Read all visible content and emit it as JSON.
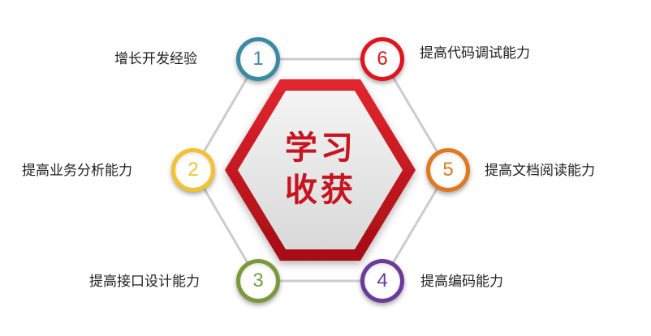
{
  "center": {
    "line1": "学习",
    "line2": "收获"
  },
  "nodes": [
    {
      "number": "1",
      "label": "增长开发经验",
      "color": "#3a8aa6"
    },
    {
      "number": "2",
      "label": "提高业务分析能力",
      "color": "#f2c230"
    },
    {
      "number": "3",
      "label": "提高接口设计能力",
      "color": "#7a9a3a"
    },
    {
      "number": "4",
      "label": "提高编码能力",
      "color": "#6b3a9a"
    },
    {
      "number": "5",
      "label": "提高文档阅读能力",
      "color": "#e0781e"
    },
    {
      "number": "6",
      "label": "提高代码调试能力",
      "color": "#e0141e"
    }
  ],
  "colors": {
    "hexagon": "#c8141e",
    "outline": "#cccccc"
  }
}
